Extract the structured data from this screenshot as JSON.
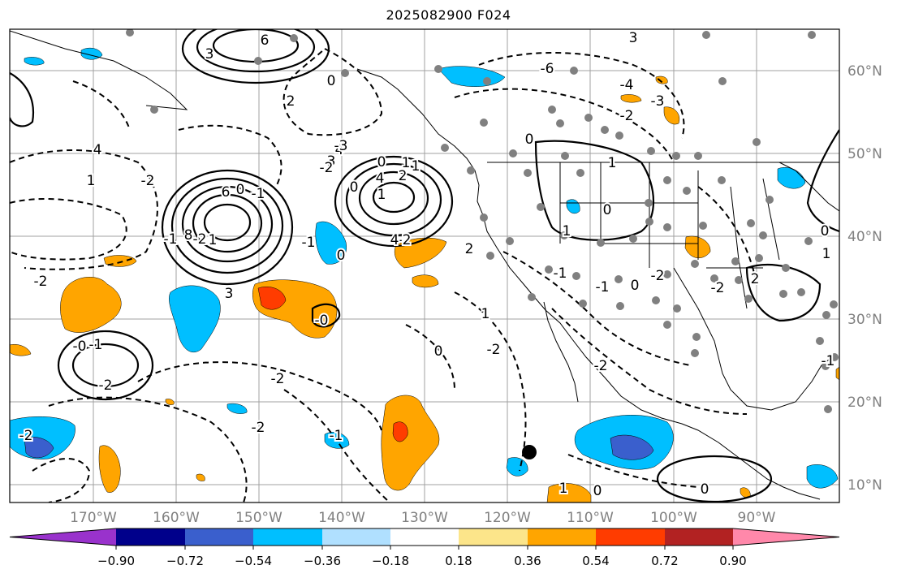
{
  "title": "2025082900 F024",
  "map": {
    "lon_ticks": [
      "170°W",
      "160°W",
      "150°W",
      "140°W",
      "130°W",
      "120°W",
      "110°W",
      "100°W",
      "90°W"
    ],
    "lat_ticks": [
      "60°N",
      "50°N",
      "40°N",
      "30°N",
      "20°N",
      "10°N"
    ],
    "contour_labels": [
      "6",
      "3",
      "0",
      "2",
      "4",
      "3",
      "0",
      "1",
      "1",
      "0",
      "-2",
      "-3",
      "-2",
      "2",
      "4",
      "1",
      "3",
      "-6",
      "-4",
      "-3",
      "-2",
      "1",
      "-2",
      "0",
      "-1",
      "-1",
      "-1",
      "-2",
      "1",
      "8",
      "6",
      "4",
      "2",
      "1",
      "0",
      "4",
      "3",
      "0",
      "-1",
      "-2",
      "-2",
      "-2",
      "0",
      "1",
      "-1",
      "-1",
      "0",
      "-2",
      "-2",
      "-2",
      "-2",
      "0",
      "0",
      "1",
      "2",
      "-1",
      "-2",
      "-1",
      "-0",
      "-0",
      "1",
      "0",
      "1",
      "0",
      "-2"
    ],
    "colors": {
      "land_outline": "#000000",
      "contour": "#000000",
      "grid": "#a0a0a0",
      "station_dot": "#808080"
    }
  },
  "colorbar": {
    "tick_labels": [
      "−0.90",
      "−0.72",
      "−0.54",
      "−0.36",
      "−0.18",
      "0.18",
      "0.36",
      "0.54",
      "0.72",
      "0.90"
    ],
    "colors": [
      "#9932cc",
      "#00008b",
      "#3a5fcd",
      "#00bfff",
      "#b0e0ff",
      "#ffffff",
      "#fce58a",
      "#ffa500",
      "#ff3c00",
      "#b22222",
      "#ff88aa"
    ]
  }
}
